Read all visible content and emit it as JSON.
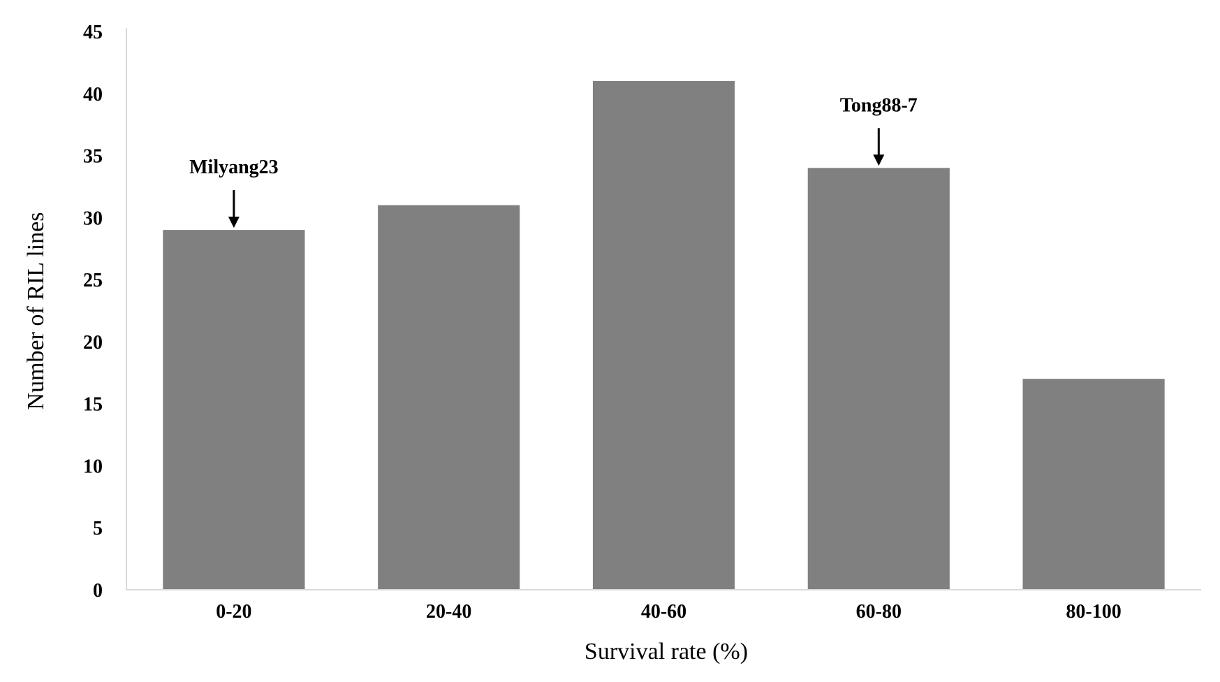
{
  "chart_data": {
    "type": "bar",
    "categories": [
      "0-20",
      "20-40",
      "40-60",
      "60-80",
      "80-100"
    ],
    "values": [
      29,
      31,
      41,
      34,
      17
    ],
    "title": "",
    "xlabel": "Survival rate (%)",
    "ylabel": "Number of RIL lines",
    "ylim": [
      0,
      45
    ],
    "yticks": [
      0,
      5,
      10,
      15,
      20,
      25,
      30,
      35,
      40,
      45
    ],
    "grid": false,
    "legend": "none",
    "bar_color": "#808080",
    "axis_color": "#d9d9d9",
    "annotations": [
      {
        "category": "0-20",
        "text": "Milyang23",
        "marker": "arrow-down"
      },
      {
        "category": "60-80",
        "text": "Tong88-7",
        "marker": "arrow-down"
      }
    ]
  }
}
